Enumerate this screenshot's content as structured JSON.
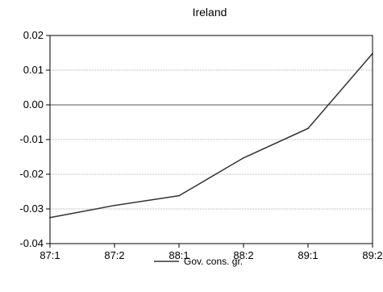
{
  "chart_data": {
    "type": "line",
    "title": "Ireland",
    "xlabel": "",
    "ylabel": "",
    "categories": [
      "87:1",
      "87:2",
      "88:1",
      "88:2",
      "89:1",
      "89:2"
    ],
    "series": [
      {
        "name": "Gov. cons. gr.",
        "values": [
          -0.0325,
          -0.029,
          -0.0262,
          -0.0153,
          -0.0068,
          0.0148
        ]
      }
    ],
    "ylim": [
      -0.04,
      0.02
    ],
    "yticks": [
      0.02,
      0.01,
      0.0,
      -0.01,
      -0.02,
      -0.03,
      -0.04
    ],
    "ytick_labels": [
      "0.02",
      "0.01",
      "0.00",
      "-0.01",
      "-0.02",
      "-0.03",
      "-0.04"
    ],
    "grid": true,
    "zero_line": true,
    "legend": "bottom-center",
    "colors": {
      "line": "#333333",
      "grid": "#b0b0b0",
      "axis": "#000000"
    }
  }
}
